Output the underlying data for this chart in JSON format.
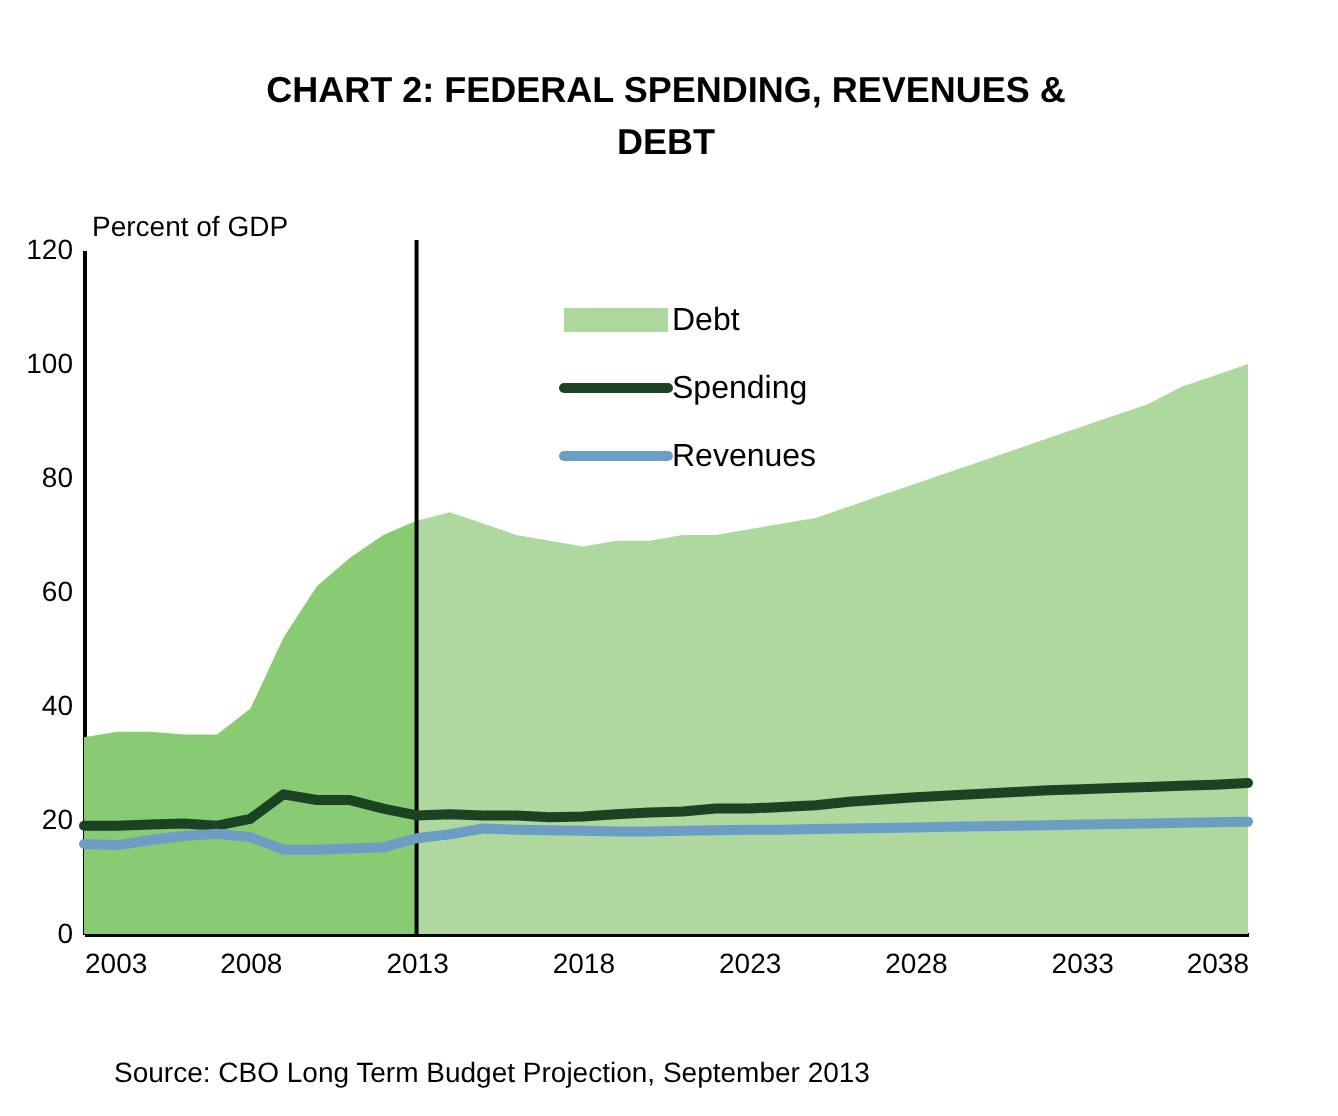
{
  "chart_data": {
    "type": "area",
    "title": "CHART 2: FEDERAL SPENDING, REVENUES & DEBT",
    "ylabel": "Percent of GDP",
    "xlim": [
      2003,
      2038
    ],
    "xticks": [
      2003,
      2008,
      2013,
      2018,
      2023,
      2028,
      2033,
      2038
    ],
    "ylim": [
      0,
      120
    ],
    "yticks": [
      0,
      20,
      40,
      60,
      80,
      100,
      120
    ],
    "grid": false,
    "legend": "top",
    "series": [
      {
        "type": "area",
        "color": "#88cb72",
        "x": [
          2003,
          2004,
          2005,
          2006,
          2007,
          2008,
          2009,
          2010,
          2011,
          2012,
          2013
        ],
        "values": [
          34.5,
          35.5,
          35.5,
          35,
          35,
          39.5,
          52,
          61,
          66,
          70,
          72.5
        ]
      },
      {
        "type": "area",
        "name": "Debt",
        "color": "#afd89e",
        "x": [
          2013,
          2014,
          2015,
          2016,
          2017,
          2018,
          2019,
          2020,
          2021,
          2022,
          2023,
          2024,
          2025,
          2026,
          2027,
          2028,
          2029,
          2030,
          2031,
          2032,
          2033,
          2034,
          2035,
          2036,
          2037,
          2038
        ],
        "values": [
          72.5,
          74,
          72,
          70,
          69,
          68,
          69,
          69,
          70,
          70,
          71,
          72,
          73,
          75,
          77,
          79,
          81,
          83,
          85,
          87,
          89,
          91,
          93,
          96,
          98,
          100
        ]
      },
      {
        "type": "line",
        "name": "Spending",
        "color": "#1a4223",
        "values": [
          19,
          19,
          19.2,
          19.4,
          19,
          20.2,
          24.5,
          23.5,
          23.5,
          22,
          20.8,
          21,
          20.8,
          20.8,
          20.5,
          20.6,
          21,
          21.3,
          21.5,
          22,
          22,
          22.3,
          22.6,
          23.2,
          23.6,
          24,
          24.3,
          24.6,
          24.9,
          25.2,
          25.4,
          25.6,
          25.8,
          26,
          26.2,
          26.5
        ]
      },
      {
        "type": "line",
        "name": "Revenues",
        "color": "#6a9ec5",
        "values": [
          15.8,
          15.6,
          16.5,
          17.2,
          17.6,
          17,
          14.8,
          14.8,
          15,
          15.2,
          16.8,
          17.5,
          18.5,
          18.3,
          18.2,
          18.1,
          18,
          18,
          18.1,
          18.2,
          18.3,
          18.3,
          18.4,
          18.5,
          18.6,
          18.7,
          18.8,
          18.9,
          19,
          19.1,
          19.2,
          19.3,
          19.4,
          19.5,
          19.6,
          19.7
        ]
      }
    ],
    "x": [
      2003,
      2004,
      2005,
      2006,
      2007,
      2008,
      2009,
      2010,
      2011,
      2012,
      2013,
      2014,
      2015,
      2016,
      2017,
      2018,
      2019,
      2020,
      2021,
      2022,
      2023,
      2024,
      2025,
      2026,
      2027,
      2028,
      2029,
      2030,
      2031,
      2032,
      2033,
      2034,
      2035,
      2036,
      2037,
      2038
    ],
    "ref_lines": [
      {
        "axis": "x",
        "value": 2013,
        "color": "#000000"
      }
    ],
    "annotations": [
      "Source: CBO Long Term Budget Projection, September 2013"
    ]
  }
}
